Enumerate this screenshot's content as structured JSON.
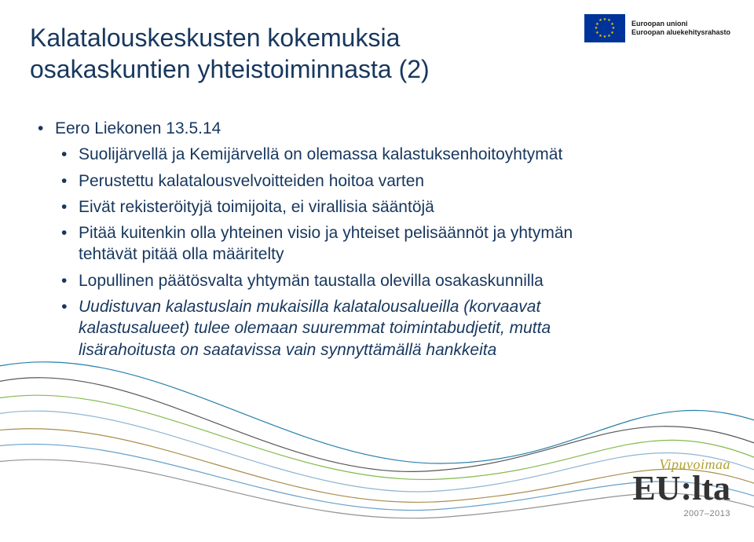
{
  "title": "Kalatalouskeskusten kokemuksia osakaskuntien yhteistoiminnasta (2)",
  "eu": {
    "line1": "Euroopan unioni",
    "line2": "Euroopan aluekehitysrahasto"
  },
  "bullets": {
    "l1": [
      {
        "text": "Eero Liekonen 13.5.14"
      }
    ],
    "l2": [
      {
        "text": "Suolijärvellä ja Kemijärvellä on olemassa kalastuksenhoitoyhtymät"
      },
      {
        "text": "Perustettu kalatalousvelvoitteiden hoitoa varten"
      },
      {
        "text": "Eivät rekisteröityjä toimijoita, ei virallisia sääntöjä"
      },
      {
        "text": "Pitää kuitenkin olla yhteinen visio ja yhteiset pelisäännöt ja yhtymän tehtävät pitää olla määritelty"
      },
      {
        "text": "Lopullinen päätösvalta yhtymän taustalla olevilla osakaskunnilla"
      },
      {
        "text": "Uudistuvan kalastuslain mukaisilla kalatalousalueilla (korvaavat kalastusalueet) tulee olemaan suuremmat toimintabudjetit, mutta lisärahoitusta on saatavissa vain synnyttämällä hankkeita",
        "italic": true
      }
    ]
  },
  "vipu": {
    "top": "Vipuvoimaa",
    "main": "EU:lta",
    "years": "2007–2013"
  },
  "waves": {
    "stroke_width": 1.2,
    "colors": [
      "#006a9e",
      "#3a3a3a",
      "#6fae2e",
      "#7aa8c9",
      "#9a7a2e",
      "#4a8fc2",
      "#7f7f7f"
    ],
    "paths": [
      "M -20 60 C 180 10, 360 180, 560 180 S 820 60, 1000 140",
      "M -20 80 C 160 30, 340 200, 540 190 S 800 80, 1000 170",
      "M -20 100 C 170 60, 350 210, 560 200 S 820 100, 1000 190",
      "M -20 120 C 160 80, 360 230, 560 215 S 820 120, 1000 205",
      "M -20 140 C 180 110, 350 245, 570 228 S 830 150, 1000 220",
      "M -20 160 C 170 130, 360 255, 565 238 S 830 170, 1000 235",
      "M -20 180 C 180 150, 350 265, 570 248 S 830 190, 1000 248"
    ]
  },
  "colors": {
    "title": "#17375e",
    "body": "#17375e",
    "bg": "#ffffff"
  }
}
